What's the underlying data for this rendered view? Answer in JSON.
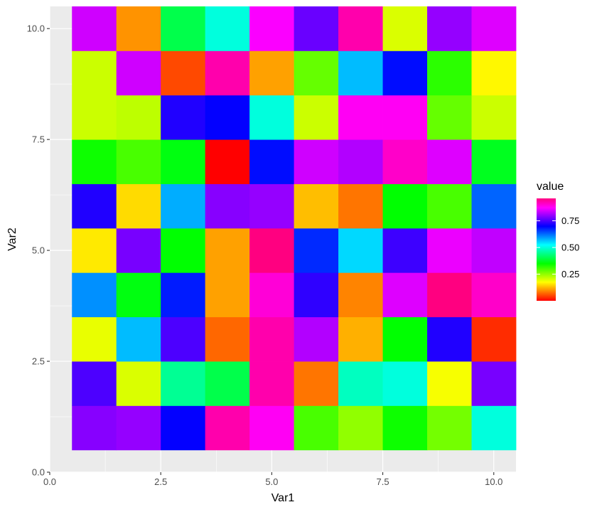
{
  "chart_data": {
    "type": "heatmap",
    "xlabel": "Var1",
    "ylabel": "Var2",
    "xlim": [
      0,
      10.5
    ],
    "ylim": [
      0,
      10.5
    ],
    "x_ticks": [
      {
        "value": 0,
        "label": "0.0"
      },
      {
        "value": 2.5,
        "label": "2.5"
      },
      {
        "value": 5,
        "label": "5.0"
      },
      {
        "value": 7.5,
        "label": "7.5"
      },
      {
        "value": 10,
        "label": "10.0"
      }
    ],
    "y_ticks": [
      {
        "value": 0,
        "label": "0.0"
      },
      {
        "value": 2.5,
        "label": "2.5"
      },
      {
        "value": 5,
        "label": "5.0"
      },
      {
        "value": 7.5,
        "label": "7.5"
      },
      {
        "value": 10,
        "label": "10.0"
      }
    ],
    "grid": true,
    "x": [
      1,
      2,
      3,
      4,
      5,
      6,
      7,
      8,
      9,
      10
    ],
    "y": [
      1,
      2,
      3,
      4,
      5,
      6,
      7,
      8,
      9,
      10
    ],
    "values_by_row_y": [
      [
        0.79,
        0.8,
        0.7,
        0.93,
        0.88,
        0.3,
        0.25,
        0.34,
        0.27,
        0.5
      ],
      [
        0.75,
        0.2,
        0.45,
        0.4,
        0.93,
        0.08,
        0.48,
        0.5,
        0.18,
        0.78
      ],
      [
        0.19,
        0.57,
        0.75,
        0.07,
        0.93,
        0.82,
        0.12,
        0.35,
        0.72,
        0.03
      ],
      [
        0.6,
        0.36,
        0.68,
        0.11,
        0.9,
        0.73,
        0.09,
        0.85,
        0.96,
        0.91
      ],
      [
        0.16,
        0.78,
        0.35,
        0.11,
        0.96,
        0.67,
        0.55,
        0.74,
        0.86,
        0.83
      ],
      [
        0.72,
        0.15,
        0.58,
        0.79,
        0.8,
        0.13,
        0.08,
        0.35,
        0.3,
        0.63
      ],
      [
        0.34,
        0.3,
        0.36,
        0.0,
        0.69,
        0.84,
        0.82,
        0.91,
        0.85,
        0.37
      ],
      [
        0.21,
        0.22,
        0.72,
        0.7,
        0.5,
        0.21,
        0.88,
        0.88,
        0.28,
        0.21
      ],
      [
        0.21,
        0.84,
        0.05,
        0.93,
        0.11,
        0.28,
        0.57,
        0.69,
        0.32,
        0.17
      ],
      [
        0.84,
        0.1,
        0.4,
        0.5,
        0.87,
        0.77,
        0.93,
        0.2,
        0.8,
        0.85
      ]
    ],
    "legend": {
      "title": "value",
      "placement": "right",
      "breaks": [
        {
          "value": 0.25,
          "label": "0.25"
        },
        {
          "value": 0.5,
          "label": "0.50"
        },
        {
          "value": 0.75,
          "label": "0.75"
        }
      ],
      "range": [
        0,
        0.96
      ],
      "color_stops": [
        "#ff0000",
        "#ff8000",
        "#ffff00",
        "#80ff00",
        "#00ff00",
        "#00ff80",
        "#00ffff",
        "#0080ff",
        "#0000ff",
        "#8000ff",
        "#ff00ff",
        "#ff0080"
      ]
    },
    "panel_background": "#ebebeb",
    "grid_color": "#ffffff"
  }
}
